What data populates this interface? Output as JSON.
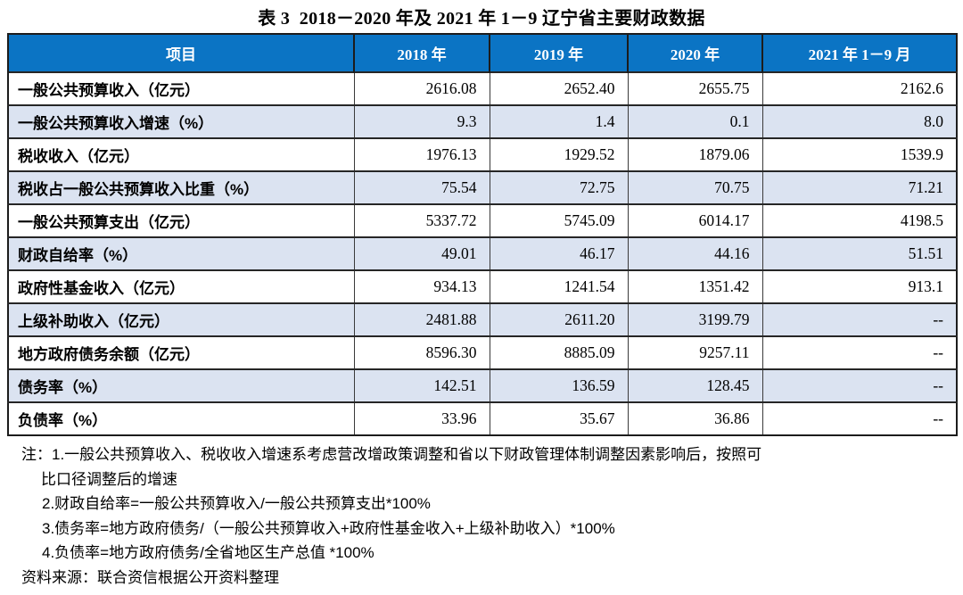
{
  "title": "表 3  2018－2020 年及 2021 年 1－9 辽宁省主要财政数据",
  "table": {
    "columns": [
      "项目",
      "2018 年",
      "2019 年",
      "2020 年",
      "2021 年 1－9 月"
    ],
    "rows": [
      {
        "label": "一般公共预算收入（亿元）",
        "values": [
          "2616.08",
          "2652.40",
          "2655.75",
          "2162.6"
        ]
      },
      {
        "label": "一般公共预算收入增速（%）",
        "values": [
          "9.3",
          "1.4",
          "0.1",
          "8.0"
        ]
      },
      {
        "label": "税收收入（亿元）",
        "values": [
          "1976.13",
          "1929.52",
          "1879.06",
          "1539.9"
        ]
      },
      {
        "label": "税收占一般公共预算收入比重（%）",
        "values": [
          "75.54",
          "72.75",
          "70.75",
          "71.21"
        ]
      },
      {
        "label": "一般公共预算支出（亿元）",
        "values": [
          "5337.72",
          "5745.09",
          "6014.17",
          "4198.5"
        ]
      },
      {
        "label": "财政自给率（%）",
        "values": [
          "49.01",
          "46.17",
          "44.16",
          "51.51"
        ]
      },
      {
        "label": "政府性基金收入（亿元）",
        "values": [
          "934.13",
          "1241.54",
          "1351.42",
          "913.1"
        ]
      },
      {
        "label": "上级补助收入（亿元）",
        "values": [
          "2481.88",
          "2611.20",
          "3199.79",
          "--"
        ]
      },
      {
        "label": "地方政府债务余额（亿元）",
        "values": [
          "8596.30",
          "8885.09",
          "9257.11",
          "--"
        ]
      },
      {
        "label": "债务率（%）",
        "values": [
          "142.51",
          "136.59",
          "128.45",
          "--"
        ]
      },
      {
        "label": "负债率（%）",
        "values": [
          "33.96",
          "35.67",
          "36.86",
          "--"
        ]
      }
    ]
  },
  "notes": {
    "line1": "注：1.一般公共预算收入、税收收入增速系考虑营改增政策调整和省以下财政管理体制调整因素影响后，按照可",
    "line2": "比口径调整后的增速",
    "formulas": [
      "2.财政自给率=一般公共预算收入/一般公共预算支出*100%",
      "3.债务率=地方政府债务/（一般公共预算收入+政府性基金收入+上级补助收入）*100%",
      "4.负债率=地方政府债务/全省地区生产总值 *100%"
    ],
    "source": "资料来源：联合资信根据公开资料整理"
  },
  "colors": {
    "header_bg": "#0B74C4",
    "header_text": "#FFFFFF",
    "alt_row_bg": "#DBE3F1",
    "border": "#262626"
  }
}
